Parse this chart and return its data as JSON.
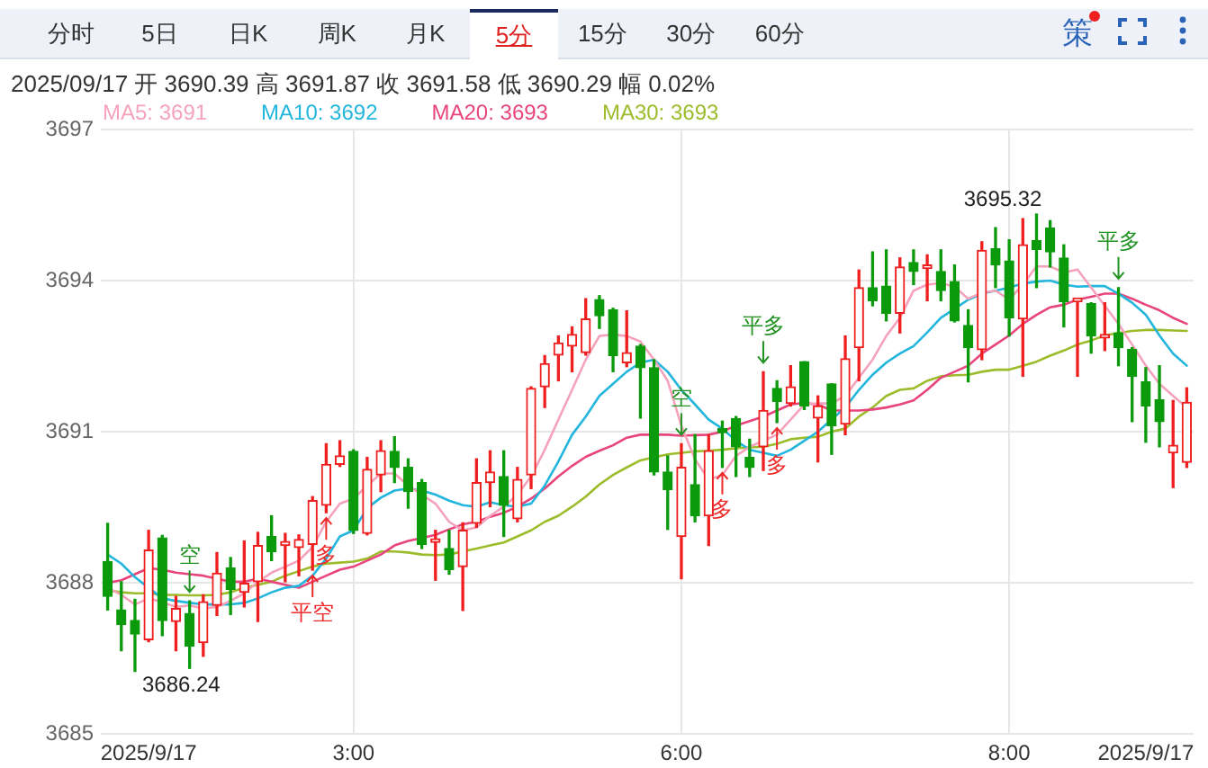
{
  "chart_data": {
    "type": "candlestick",
    "categories": [
      null,
      null,
      null,
      "2025/9/17",
      null,
      null,
      null,
      null,
      null,
      null,
      null,
      null,
      null,
      null,
      null,
      null,
      null,
      null,
      "3:00",
      null,
      null,
      null,
      null,
      null,
      null,
      null,
      null,
      null,
      null,
      null,
      null,
      null,
      null,
      null,
      null,
      null,
      null,
      null,
      null,
      null,
      null,
      null,
      "6:00",
      null,
      null,
      null,
      null,
      null,
      null,
      null,
      null,
      null,
      null,
      null,
      null,
      null,
      null,
      null,
      null,
      null,
      null,
      null,
      null,
      null,
      null,
      null,
      "8:00",
      null,
      null,
      null,
      null,
      null,
      null,
      null,
      null,
      null,
      "2025/9/17",
      null,
      null,
      null
    ],
    "ohlc": [
      [
        3688.42,
        3689.18,
        3687.46,
        3687.73
      ],
      [
        3687.46,
        3688.02,
        3686.65,
        3687.17
      ],
      [
        3687.25,
        3687.67,
        3686.24,
        3686.98
      ],
      [
        3686.87,
        3689.04,
        3686.83,
        3688.65
      ],
      [
        3688.89,
        3688.94,
        3686.95,
        3687.25
      ],
      [
        3687.23,
        3687.73,
        3686.65,
        3687.49
      ],
      [
        3687.39,
        3687.64,
        3686.3,
        3686.74
      ],
      [
        3686.81,
        3687.76,
        3686.54,
        3687.62
      ],
      [
        3687.55,
        3688.6,
        3687.35,
        3688.19
      ],
      [
        3688.29,
        3688.5,
        3687.37,
        3687.87
      ],
      [
        3687.81,
        3688.83,
        3687.52,
        3687.99
      ],
      [
        3688.02,
        3689.0,
        3687.23,
        3688.74
      ],
      [
        3688.92,
        3689.33,
        3688.44,
        3688.62
      ],
      [
        3688.74,
        3688.98,
        3688.02,
        3688.82
      ],
      [
        3688.7,
        3688.95,
        3688.14,
        3688.86
      ],
      [
        3688.76,
        3689.71,
        3688.25,
        3689.63
      ],
      [
        3689.54,
        3690.76,
        3689.39,
        3690.35
      ],
      [
        3690.35,
        3690.82,
        3690.31,
        3690.52
      ],
      [
        3690.61,
        3690.64,
        3688.98,
        3689.04
      ],
      [
        3688.98,
        3690.49,
        3688.95,
        3690.25
      ],
      [
        3690.14,
        3690.82,
        3689.81,
        3690.62
      ],
      [
        3690.61,
        3690.9,
        3689.99,
        3690.29
      ],
      [
        3690.29,
        3690.46,
        3689.48,
        3689.81
      ],
      [
        3689.99,
        3690.05,
        3688.68,
        3688.76
      ],
      [
        3688.8,
        3689.04,
        3688.05,
        3688.8
      ],
      [
        3688.68,
        3689.04,
        3688.17,
        3688.26
      ],
      [
        3688.32,
        3689.19,
        3687.45,
        3689.04
      ],
      [
        3689.18,
        3690.46,
        3689.1,
        3689.99
      ],
      [
        3689.99,
        3690.62,
        3689.51,
        3690.2
      ],
      [
        3690.11,
        3690.62,
        3688.92,
        3689.54
      ],
      [
        3689.27,
        3690.29,
        3689.21,
        3690.05
      ],
      [
        3690.14,
        3691.89,
        3689.87,
        3691.86
      ],
      [
        3691.89,
        3692.51,
        3691.48,
        3692.35
      ],
      [
        3692.52,
        3692.9,
        3692.01,
        3692.76
      ],
      [
        3692.7,
        3693.08,
        3692.19,
        3692.93
      ],
      [
        3692.57,
        3693.64,
        3692.52,
        3693.24
      ],
      [
        3693.62,
        3693.7,
        3693.05,
        3693.3
      ],
      [
        3693.42,
        3693.45,
        3692.19,
        3692.51
      ],
      [
        3692.37,
        3693.4,
        3692.29,
        3692.57
      ],
      [
        3692.7,
        3692.73,
        3691.27,
        3692.27
      ],
      [
        3692.27,
        3692.43,
        3690.14,
        3690.2
      ],
      [
        3690.2,
        3690.52,
        3689.06,
        3689.85
      ],
      [
        3688.92,
        3690.76,
        3688.08,
        3690.29
      ],
      [
        3689.95,
        3690.94,
        3689.21,
        3689.33
      ],
      [
        3689.33,
        3690.94,
        3688.74,
        3690.62
      ],
      [
        3691.06,
        3691.21,
        3690.29,
        3690.98
      ],
      [
        3691.26,
        3691.3,
        3690.11,
        3690.7
      ],
      [
        3690.49,
        3690.85,
        3690.11,
        3690.29
      ],
      [
        3690.7,
        3692.19,
        3690.23,
        3691.42
      ],
      [
        3691.86,
        3692.01,
        3691.18,
        3691.6
      ],
      [
        3691.56,
        3692.31,
        3691.51,
        3691.89
      ],
      [
        3692.39,
        3692.39,
        3691.44,
        3691.51
      ],
      [
        3691.27,
        3691.71,
        3690.4,
        3691.51
      ],
      [
        3691.95,
        3691.95,
        3690.55,
        3691.12
      ],
      [
        3691.15,
        3692.9,
        3690.94,
        3692.45
      ],
      [
        3692.67,
        3694.21,
        3692.01,
        3693.86
      ],
      [
        3693.86,
        3694.57,
        3693.5,
        3693.6
      ],
      [
        3693.89,
        3694.61,
        3693.2,
        3693.35
      ],
      [
        3693.35,
        3694.45,
        3692.96,
        3694.27
      ],
      [
        3694.36,
        3694.61,
        3693.92,
        3694.18
      ],
      [
        3694.24,
        3694.51,
        3693.6,
        3694.31
      ],
      [
        3694.18,
        3694.61,
        3693.6,
        3693.8
      ],
      [
        3693.98,
        3694.31,
        3693.18,
        3693.2
      ],
      [
        3693.11,
        3693.42,
        3691.99,
        3692.67
      ],
      [
        3692.63,
        3694.77,
        3692.43,
        3694.6
      ],
      [
        3694.63,
        3695.05,
        3693.86,
        3694.31
      ],
      [
        3694.39,
        3694.81,
        3692.9,
        3693.26
      ],
      [
        3693.24,
        3695.23,
        3692.1,
        3694.71
      ],
      [
        3694.79,
        3695.32,
        3693.86,
        3694.62
      ],
      [
        3695.04,
        3695.19,
        3694.27,
        3694.57
      ],
      [
        3694.45,
        3694.71,
        3693.08,
        3693.58
      ],
      [
        3693.58,
        3693.62,
        3692.1,
        3693.6
      ],
      [
        3693.54,
        3693.56,
        3692.56,
        3692.9
      ],
      [
        3692.86,
        3693.56,
        3692.61,
        3692.89
      ],
      [
        3692.96,
        3693.86,
        3692.31,
        3692.67
      ],
      [
        3692.63,
        3692.67,
        3691.2,
        3692.1
      ],
      [
        3691.99,
        3692.27,
        3690.79,
        3691.51
      ],
      [
        3691.63,
        3692.31,
        3690.7,
        3691.2
      ],
      [
        3690.58,
        3691.62,
        3689.89,
        3690.73
      ],
      [
        3690.39,
        3691.87,
        3690.29,
        3691.58
      ]
    ],
    "colors": [
      "#0b9a0b",
      "#0b9a0b",
      "#0b9a0b",
      "#f01f1f",
      "#0b9a0b",
      "#f01f1f",
      "#0b9a0b",
      "#f01f1f",
      "#f01f1f",
      "#0b9a0b",
      "#f01f1f",
      "#f01f1f",
      "#0b9a0b",
      "#f01f1f",
      "#f01f1f",
      "#f01f1f",
      "#f01f1f",
      "#f01f1f",
      "#0b9a0b",
      "#f01f1f",
      "#f01f1f",
      "#0b9a0b",
      "#0b9a0b",
      "#0b9a0b",
      "#f01f1f",
      "#0b9a0b",
      "#f01f1f",
      "#f01f1f",
      "#f01f1f",
      "#0b9a0b",
      "#f01f1f",
      "#f01f1f",
      "#f01f1f",
      "#f01f1f",
      "#f01f1f",
      "#f01f1f",
      "#0b9a0b",
      "#0b9a0b",
      "#f01f1f",
      "#0b9a0b",
      "#0b9a0b",
      "#0b9a0b",
      "#f01f1f",
      "#0b9a0b",
      "#f01f1f",
      "#0b9a0b",
      "#0b9a0b",
      "#0b9a0b",
      "#f01f1f",
      "#0b9a0b",
      "#f01f1f",
      "#0b9a0b",
      "#f01f1f",
      "#0b9a0b",
      "#f01f1f",
      "#f01f1f",
      "#0b9a0b",
      "#0b9a0b",
      "#f01f1f",
      "#0b9a0b",
      "#f01f1f",
      "#0b9a0b",
      "#0b9a0b",
      "#0b9a0b",
      "#f01f1f",
      "#0b9a0b",
      "#0b9a0b",
      "#f01f1f",
      "#0b9a0b",
      "#0b9a0b",
      "#0b9a0b",
      "#f01f1f",
      "#0b9a0b",
      "#f01f1f",
      "#0b9a0b",
      "#0b9a0b",
      "#0b9a0b",
      "#0b9a0b",
      "#f01f1f",
      "#f01f1f"
    ],
    "series": [
      {
        "name": "MA5: 3691",
        "type": "line",
        "color": "#f5a3bb",
        "values": [
          3687.9,
          3687.76,
          3687.57,
          3687.69,
          3687.61,
          3687.52,
          3687.55,
          3687.49,
          3687.52,
          3687.64,
          3687.79,
          3688.02,
          3688.2,
          3688.32,
          3688.44,
          3688.71,
          3689.21,
          3689.57,
          3689.67,
          3689.93,
          3690.17,
          3690.17,
          3689.93,
          3689.75,
          3689.57,
          3689.21,
          3689.04,
          3689.1,
          3689.33,
          3689.51,
          3689.75,
          3690.11,
          3690.64,
          3691.24,
          3691.83,
          3692.43,
          3692.9,
          3692.93,
          3692.9,
          3692.79,
          3692.43,
          3692.01,
          3691.12,
          3690.45,
          3690.05,
          3690.14,
          3690.52,
          3690.7,
          3690.82,
          3690.94,
          3691.24,
          3691.54,
          3691.56,
          3691.56,
          3691.71,
          3692.07,
          3692.43,
          3692.9,
          3693.26,
          3693.8,
          3693.92,
          3693.95,
          3693.88,
          3693.64,
          3693.76,
          3693.8,
          3693.62,
          3693.92,
          3694.28,
          3694.28,
          3694.16,
          3694.22,
          3693.86,
          3693.5,
          3693.14,
          3692.73,
          3692.31,
          3691.95,
          3691.71,
          3691.48
        ]
      },
      {
        "name": "MA10: 3692",
        "type": "line",
        "color": "#22b6dc",
        "values": [
          3688.56,
          3688.38,
          3688.11,
          3687.9,
          3687.69,
          3687.64,
          3687.6,
          3687.57,
          3687.57,
          3687.57,
          3687.6,
          3687.69,
          3687.81,
          3687.9,
          3687.94,
          3688.14,
          3688.48,
          3688.92,
          3689.04,
          3689.48,
          3689.69,
          3689.83,
          3689.87,
          3689.83,
          3689.75,
          3689.63,
          3689.54,
          3689.51,
          3689.6,
          3689.54,
          3689.51,
          3689.57,
          3689.93,
          3690.41,
          3690.94,
          3691.3,
          3691.71,
          3691.95,
          3692.19,
          3692.37,
          3692.43,
          3692.19,
          3691.83,
          3691.54,
          3691.24,
          3691.06,
          3690.82,
          3690.64,
          3690.58,
          3690.52,
          3690.64,
          3690.82,
          3691.0,
          3691.24,
          3691.48,
          3691.83,
          3692.13,
          3692.37,
          3692.55,
          3692.7,
          3692.97,
          3693.26,
          3693.44,
          3693.62,
          3693.74,
          3693.8,
          3693.86,
          3693.94,
          3693.98,
          3694.0,
          3693.92,
          3693.88,
          3693.89,
          3693.89,
          3693.74,
          3693.56,
          3693.32,
          3692.91,
          3692.55,
          3692.31
        ]
      },
      {
        "name": "MA20: 3693",
        "type": "line",
        "color": "#e8457c",
        "values": [
          3688.0,
          3688.05,
          3688.17,
          3688.29,
          3688.26,
          3688.2,
          3688.17,
          3688.14,
          3688.08,
          3688.02,
          3688.02,
          3688.08,
          3688.02,
          3687.96,
          3687.9,
          3688.02,
          3688.14,
          3688.26,
          3688.32,
          3688.44,
          3688.56,
          3688.74,
          3688.83,
          3688.89,
          3688.95,
          3689.06,
          3689.16,
          3689.21,
          3689.31,
          3689.39,
          3689.51,
          3689.67,
          3689.87,
          3690.11,
          3690.32,
          3690.5,
          3690.62,
          3690.73,
          3690.88,
          3690.94,
          3690.94,
          3690.94,
          3690.92,
          3690.93,
          3690.94,
          3691.0,
          3691.12,
          3691.21,
          3691.3,
          3691.42,
          3691.54,
          3691.57,
          3691.54,
          3691.42,
          3691.42,
          3691.42,
          3691.44,
          3691.48,
          3691.54,
          3691.62,
          3691.83,
          3692.07,
          3692.19,
          3692.31,
          3692.55,
          3692.73,
          3692.91,
          3693.14,
          3693.32,
          3693.47,
          3693.52,
          3693.62,
          3693.68,
          3693.74,
          3693.74,
          3693.64,
          3693.52,
          3693.41,
          3693.26,
          3693.14
        ]
      },
      {
        "name": "MA30: 3693",
        "type": "line",
        "color": "#9cbc2b",
        "values": [
          3687.85,
          3687.81,
          3687.79,
          3687.79,
          3687.76,
          3687.76,
          3687.75,
          3687.75,
          3687.76,
          3687.81,
          3687.9,
          3687.96,
          3688.02,
          3688.14,
          3688.23,
          3688.32,
          3688.38,
          3688.4,
          3688.42,
          3688.48,
          3688.62,
          3688.62,
          3688.6,
          3688.56,
          3688.55,
          3688.56,
          3688.62,
          3688.68,
          3688.74,
          3688.8,
          3688.92,
          3689.04,
          3689.21,
          3689.33,
          3689.51,
          3689.71,
          3689.95,
          3690.14,
          3690.29,
          3690.43,
          3690.49,
          3690.55,
          3690.58,
          3690.61,
          3690.62,
          3690.64,
          3690.67,
          3690.69,
          3690.7,
          3690.76,
          3690.85,
          3690.88,
          3690.9,
          3691.0,
          3691.06,
          3691.3,
          3691.48,
          3691.71,
          3691.83,
          3691.86,
          3692.01,
          3692.1,
          3692.12,
          3692.13,
          3692.19,
          3692.23,
          3692.23,
          3692.31,
          3692.39,
          3692.51,
          3692.61,
          3692.73,
          3692.81,
          3692.91,
          3692.96,
          3693.0,
          3693.02,
          3693.02,
          3693.01,
          3693.0
        ]
      }
    ],
    "ylim": [
      3685,
      3697
    ],
    "yticks": [
      3685,
      3688,
      3691,
      3694,
      3697
    ],
    "grid": true,
    "legend": "top left",
    "marker": "none",
    "annotations": [
      "2025/09/17 开 3690.39 高 3691.87 收 3691.58 低 3690.29 幅 0.02%",
      "分时",
      "5日",
      "日K",
      "周K",
      "月K",
      "5分",
      "15分",
      "30分",
      "60分",
      "策",
      "空",
      "平空",
      "多",
      "空",
      "多",
      "平多",
      "多",
      "平多",
      "3695.32",
      "3686.24"
    ]
  }
}
